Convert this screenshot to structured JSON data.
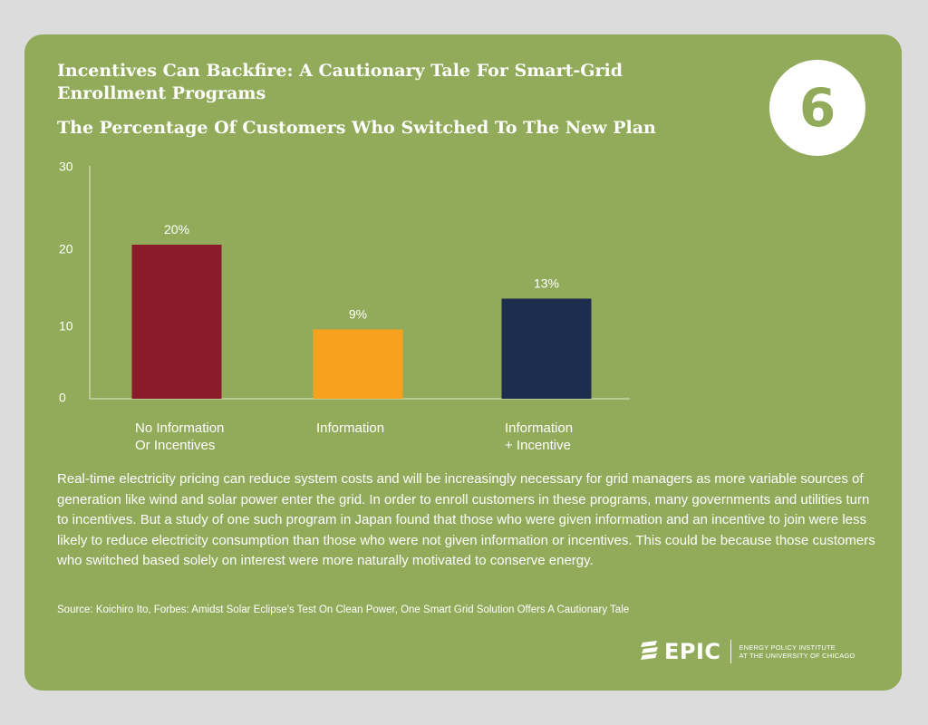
{
  "header": {
    "title": "Incentives Can Backfire: A Cautionary Tale For Smart-Grid Enrollment Programs",
    "subtitle": "The Percentage Of Customers Who Switched To The New Plan",
    "badge_number": "6"
  },
  "chart_data": {
    "type": "bar",
    "title": "The Percentage Of Customers Who Switched To The New Plan",
    "categories": [
      [
        "No Information",
        "Or Incentives"
      ],
      [
        "Information"
      ],
      [
        "Information",
        "+ Incentive"
      ]
    ],
    "values": [
      20,
      9,
      13
    ],
    "labels": [
      "20%",
      "9%",
      "13%"
    ],
    "colors": [
      "#8b1a2a",
      "#f6a21e",
      "#1d2d4d"
    ],
    "yticks": [
      0,
      10,
      20,
      30
    ],
    "ylim": [
      0,
      30
    ],
    "xlabel": "",
    "ylabel": "",
    "grid": false
  },
  "body": {
    "description": "Real-time electricity pricing can reduce system costs and will be increasingly necessary for grid managers as more variable sources of generation like wind and solar power enter the grid. In order to enroll customers in these programs, many governments and utilities turn to incentives. But a study of one such program in Japan found that those who were given information and an incentive to join were less likely to reduce electricity consumption than those who were not given information or incentives. This could be because those customers who switched based solely on interest were more naturally motivated to conserve energy.",
    "source": "Source: Koichiro Ito, Forbes: Amidst Solar Eclipse's Test On Clean Power, One Smart Grid Solution Offers A Cautionary Tale"
  },
  "logo": {
    "wordmark": "EPIC",
    "tagline_line1": "ENERGY POLICY INSTITUTE",
    "tagline_line2": "AT THE UNIVERSITY OF CHICAGO"
  },
  "colors": {
    "background": "#dcdcdc",
    "card": "#91ab5a",
    "text": "#ffffff"
  }
}
